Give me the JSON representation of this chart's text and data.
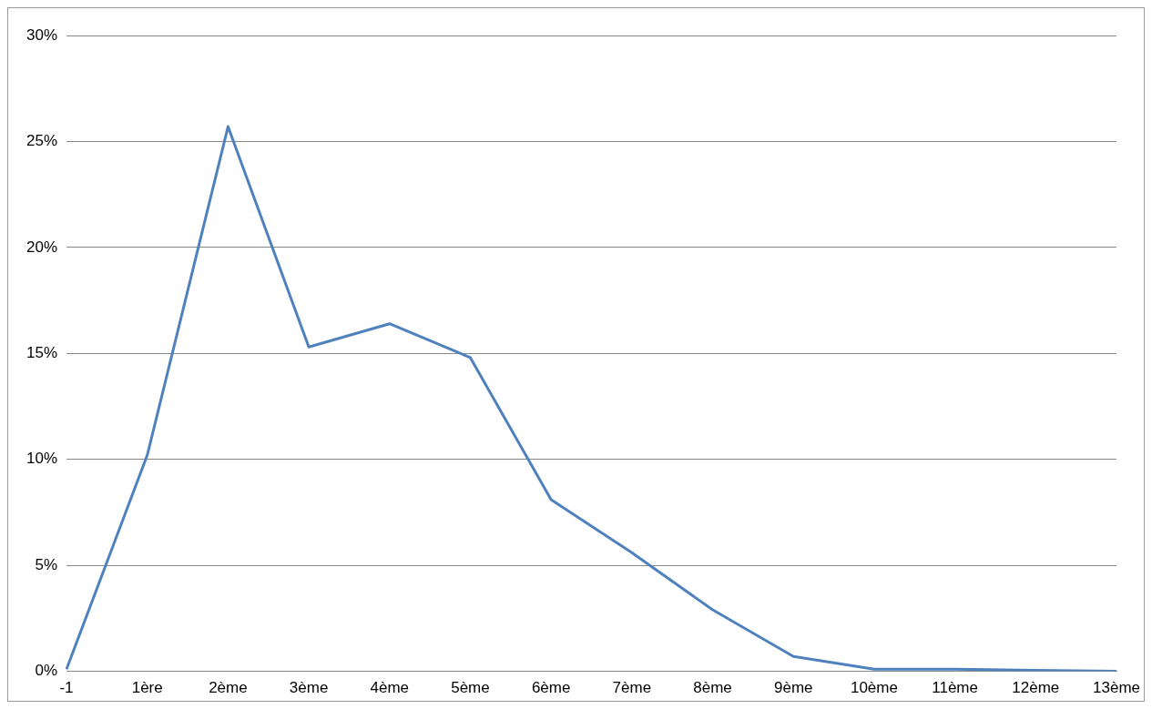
{
  "chart_data": {
    "type": "line",
    "categories": [
      "-1",
      "1ère",
      "2ème",
      "3ème",
      "4ème",
      "5ème",
      "6ème",
      "7ème",
      "8ème",
      "9ème",
      "10ème",
      "11ème",
      "12ème",
      "13ème"
    ],
    "series": [
      {
        "color": "#4f81bd",
        "values": [
          0.1,
          10.2,
          25.7,
          15.3,
          16.4,
          14.8,
          8.1,
          5.6,
          2.9,
          0.7,
          0.1,
          0.1,
          0.05,
          0
        ]
      }
    ],
    "ylim": [
      0,
      30
    ],
    "yticks": [
      {
        "value": 0,
        "label": "0%"
      },
      {
        "value": 5,
        "label": "5%"
      },
      {
        "value": 10,
        "label": "10%"
      },
      {
        "value": 15,
        "label": "15%"
      },
      {
        "value": 20,
        "label": "20%"
      },
      {
        "value": 25,
        "label": "25%"
      },
      {
        "value": 30,
        "label": "30%"
      }
    ],
    "grid": "y",
    "legend": false,
    "marker": "none",
    "line_style": "solid"
  }
}
